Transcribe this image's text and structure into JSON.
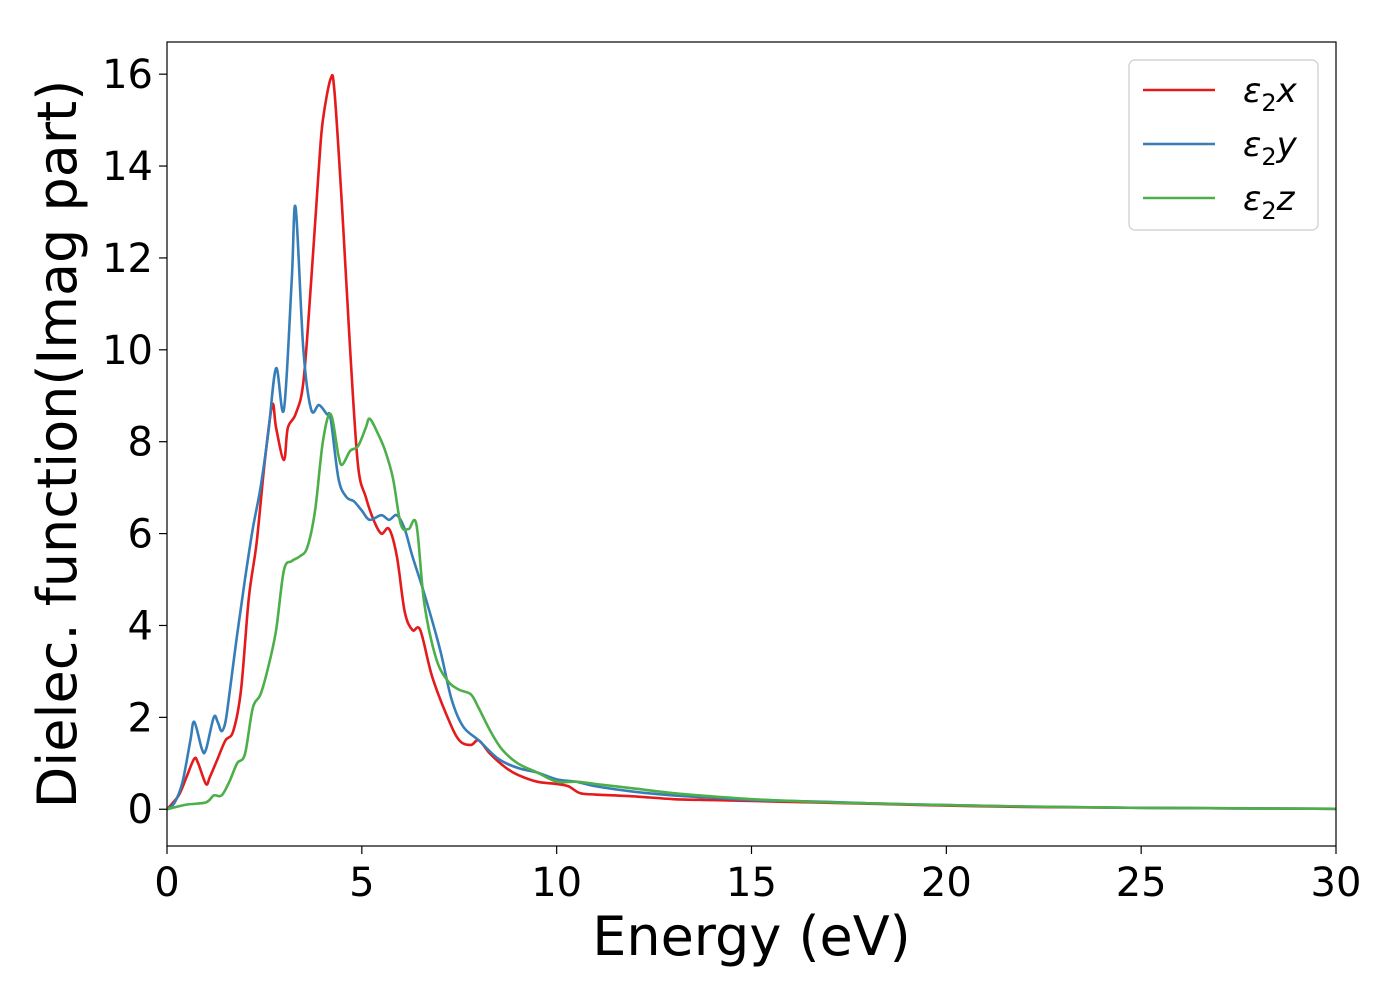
{
  "chart_data": {
    "type": "line",
    "title": "",
    "xlabel": "Energy (eV)",
    "ylabel": "Dielec. function(Imag part)",
    "xlim": [
      0,
      30
    ],
    "ylim": [
      -0.8,
      16.7
    ],
    "xticks": [
      0,
      5,
      10,
      15,
      20,
      25,
      30
    ],
    "yticks": [
      0,
      2,
      4,
      6,
      8,
      10,
      12,
      14,
      16
    ],
    "grid": false,
    "legend_position": "top-right",
    "series": [
      {
        "name": "ε₂x",
        "legend_base": "ε",
        "legend_sub": "2",
        "legend_suffix": "x",
        "color": "#e41a1c",
        "x": [
          0,
          0.3,
          0.5,
          0.7,
          0.8,
          1.0,
          1.1,
          1.3,
          1.5,
          1.7,
          1.9,
          2.1,
          2.3,
          2.5,
          2.7,
          2.8,
          3.0,
          3.1,
          3.3,
          3.5,
          3.7,
          3.9,
          4.0,
          4.2,
          4.3,
          4.5,
          4.7,
          4.9,
          5.1,
          5.3,
          5.5,
          5.7,
          5.9,
          6.1,
          6.3,
          6.5,
          6.8,
          7.2,
          7.5,
          7.8,
          8.0,
          8.3,
          8.7,
          9.0,
          9.5,
          10.0,
          10.3,
          10.6,
          11.0,
          12.0,
          13.0,
          14.0,
          15.0,
          16.0,
          17.0,
          18.0,
          20.0,
          22.0,
          25.0,
          30.0
        ],
        "y": [
          0,
          0.3,
          0.7,
          1.1,
          1.0,
          0.55,
          0.7,
          1.1,
          1.5,
          1.7,
          2.6,
          4.6,
          5.8,
          7.5,
          8.8,
          8.3,
          7.6,
          8.3,
          8.6,
          9.3,
          11.5,
          14.0,
          15.0,
          15.9,
          15.6,
          13.0,
          10.0,
          7.5,
          6.8,
          6.3,
          6.0,
          6.1,
          5.5,
          4.3,
          3.9,
          3.9,
          2.9,
          2.0,
          1.5,
          1.4,
          1.5,
          1.2,
          0.9,
          0.75,
          0.6,
          0.55,
          0.5,
          0.35,
          0.32,
          0.28,
          0.22,
          0.2,
          0.18,
          0.16,
          0.14,
          0.12,
          0.08,
          0.05,
          0.03,
          0.01
        ]
      },
      {
        "name": "ε₂y",
        "legend_base": "ε",
        "legend_sub": "2",
        "legend_suffix": "y",
        "color": "#377eb8",
        "x": [
          0,
          0.2,
          0.4,
          0.6,
          0.7,
          0.9,
          1.0,
          1.2,
          1.3,
          1.4,
          1.5,
          1.6,
          1.8,
          2.0,
          2.2,
          2.4,
          2.6,
          2.8,
          3.0,
          3.2,
          3.3,
          3.5,
          3.7,
          3.9,
          4.1,
          4.2,
          4.4,
          4.6,
          4.8,
          5.0,
          5.2,
          5.5,
          5.7,
          5.9,
          6.1,
          6.3,
          6.6,
          7.0,
          7.3,
          7.6,
          8.0,
          8.5,
          9.0,
          9.5,
          10.0,
          10.5,
          11.0,
          12.0,
          13.0,
          14.0,
          15.0,
          16.0,
          17.0,
          18.0,
          20.0,
          22.0,
          25.0,
          30.0
        ],
        "y": [
          0,
          0.15,
          0.6,
          1.5,
          1.9,
          1.3,
          1.3,
          2.0,
          1.9,
          1.7,
          1.9,
          2.5,
          3.8,
          5.0,
          6.1,
          7.0,
          8.2,
          9.6,
          8.7,
          11.5,
          13.1,
          10.0,
          8.7,
          8.8,
          8.6,
          8.5,
          7.2,
          6.8,
          6.7,
          6.5,
          6.3,
          6.4,
          6.3,
          6.4,
          6.1,
          5.5,
          4.7,
          3.5,
          2.4,
          1.8,
          1.5,
          1.1,
          0.9,
          0.8,
          0.65,
          0.6,
          0.5,
          0.38,
          0.3,
          0.25,
          0.2,
          0.18,
          0.16,
          0.13,
          0.09,
          0.06,
          0.03,
          0.01
        ]
      },
      {
        "name": "ε₂z",
        "legend_base": "ε",
        "legend_sub": "2",
        "legend_suffix": "z",
        "color": "#4daf4a",
        "x": [
          0,
          0.5,
          1.0,
          1.2,
          1.4,
          1.6,
          1.8,
          2.0,
          2.2,
          2.4,
          2.6,
          2.8,
          3.0,
          3.2,
          3.4,
          3.6,
          3.8,
          4.0,
          4.2,
          4.4,
          4.5,
          4.7,
          4.9,
          5.1,
          5.2,
          5.4,
          5.6,
          5.8,
          6.0,
          6.2,
          6.4,
          6.6,
          6.9,
          7.2,
          7.5,
          7.8,
          8.0,
          8.3,
          8.6,
          9.0,
          9.5,
          10.0,
          10.5,
          11.0,
          12.0,
          13.0,
          14.0,
          15.0,
          16.0,
          17.0,
          18.0,
          20.0,
          22.0,
          25.0,
          30.0
        ],
        "y": [
          0,
          0.1,
          0.15,
          0.3,
          0.3,
          0.6,
          1.0,
          1.2,
          2.2,
          2.5,
          3.1,
          3.9,
          5.2,
          5.4,
          5.5,
          5.7,
          6.5,
          8.0,
          8.6,
          7.7,
          7.5,
          7.8,
          7.9,
          8.3,
          8.5,
          8.2,
          7.8,
          7.2,
          6.2,
          6.1,
          6.2,
          4.5,
          3.3,
          2.8,
          2.6,
          2.5,
          2.2,
          1.7,
          1.3,
          1.0,
          0.8,
          0.6,
          0.6,
          0.55,
          0.45,
          0.35,
          0.28,
          0.22,
          0.18,
          0.15,
          0.13,
          0.09,
          0.06,
          0.03,
          0.01
        ]
      }
    ]
  }
}
